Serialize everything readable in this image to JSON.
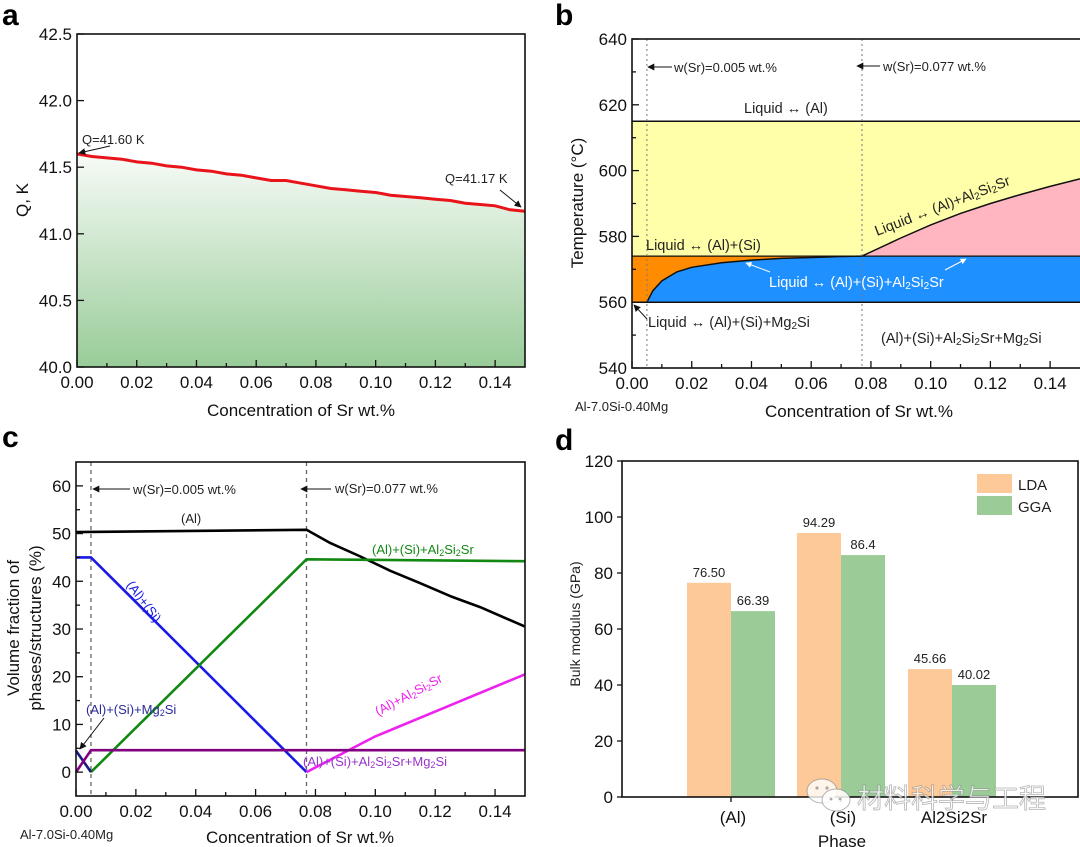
{
  "chart_data": [
    {
      "panel": "a",
      "type": "area",
      "title": "",
      "xlabel": "Concentration of Sr wt.%",
      "ylabel": "Q, K",
      "xlim": [
        0,
        0.15
      ],
      "ylim": [
        40.0,
        42.5
      ],
      "xticks": [
        "0.00",
        "0.02",
        "0.04",
        "0.06",
        "0.08",
        "0.10",
        "0.12",
        "0.14"
      ],
      "yticks": [
        "40.0",
        "40.5",
        "41.0",
        "41.5",
        "42.0",
        "42.5"
      ],
      "series": [
        {
          "name": "Q",
          "color": "#e8141a",
          "x": [
            0.0,
            0.005,
            0.01,
            0.015,
            0.02,
            0.025,
            0.03,
            0.035,
            0.04,
            0.045,
            0.05,
            0.055,
            0.06,
            0.065,
            0.07,
            0.075,
            0.08,
            0.085,
            0.09,
            0.095,
            0.1,
            0.105,
            0.11,
            0.115,
            0.12,
            0.125,
            0.13,
            0.135,
            0.14,
            0.145,
            0.15
          ],
          "y": [
            41.6,
            41.58,
            41.57,
            41.56,
            41.54,
            41.53,
            41.51,
            41.5,
            41.48,
            41.47,
            41.45,
            41.44,
            41.42,
            41.4,
            41.4,
            41.38,
            41.36,
            41.34,
            41.33,
            41.32,
            41.31,
            41.29,
            41.28,
            41.27,
            41.26,
            41.25,
            41.23,
            41.22,
            41.21,
            41.18,
            41.17
          ]
        }
      ],
      "fill": {
        "top_color": "#f7fbf7",
        "bottom_color": "#98cc98"
      },
      "annotations": [
        {
          "text": "Q=41.60 K",
          "x": 0.0,
          "y": 41.6
        },
        {
          "text": "Q=41.17 K",
          "x": 0.15,
          "y": 41.17
        }
      ]
    },
    {
      "panel": "b",
      "type": "area",
      "title": "",
      "xlabel": "Concentration of Sr wt.%",
      "ylabel": "Temperature (°C)",
      "xlim": [
        0,
        0.15
      ],
      "ylim": [
        540,
        640
      ],
      "xticks": [
        "0.00",
        "0.02",
        "0.04",
        "0.06",
        "0.08",
        "0.10",
        "0.12",
        "0.14"
      ],
      "yticks": [
        "540",
        "560",
        "580",
        "600",
        "620",
        "640"
      ],
      "composition_label": "Al-7.0Si-0.40Mg",
      "reference_lines": [
        {
          "x": 0.005,
          "label": "w(Sr)=0.005 wt.%"
        },
        {
          "x": 0.077,
          "label": "w(Sr)=0.077 wt.%"
        }
      ],
      "boundaries": {
        "liquidus_T": 615,
        "eutectic_top_T": 574,
        "solidus_T": 560,
        "al2si2sr_curve": {
          "x": [
            0.077,
            0.09,
            0.1,
            0.11,
            0.12,
            0.13,
            0.14,
            0.15
          ],
          "y": [
            574,
            579.5,
            583.5,
            587,
            590,
            592.7,
            595.2,
            597.5
          ]
        },
        "blue_curve": {
          "x": [
            0.005,
            0.007,
            0.01,
            0.015,
            0.02,
            0.03,
            0.04,
            0.05,
            0.06,
            0.07,
            0.077
          ],
          "y": [
            560,
            563.5,
            566.5,
            569.2,
            570.6,
            572,
            572.8,
            573.3,
            573.6,
            573.9,
            574
          ]
        }
      },
      "regions": [
        {
          "name": "Liquid ↔ (Al)",
          "color": "#ffffaa"
        },
        {
          "name": "Liquid ↔ (Al)+(Si)",
          "color": "#ff8c00"
        },
        {
          "name": "Liquid ↔ (Al)+Al2Si2Sr",
          "color": "#ffb6c1"
        },
        {
          "name": "Liquid ↔ (Al)+(Si)+Al2Si2Sr",
          "color": "#1e90ff"
        },
        {
          "name": "Liquid ↔ (Al)+(Si)+Mg2Si",
          "color": "#ffffff"
        },
        {
          "name": "(Al)+(Si)+Al2Si2Sr+Mg2Si",
          "color": "#ffffff"
        }
      ],
      "labels": {
        "liquid_al": "Liquid ↔ (Al)",
        "liquid_al_si": "Liquid ↔ (Al)+(Si)",
        "liquid_al_al2si2sr_prefix": "Liquid ↔ (Al)+Al",
        "liquid_al_si_al2si2sr_prefix": "Liquid ↔ (Al)+(Si)+Al",
        "liquid_al_si_mg2si_prefix": "Liquid ↔ (Al)+(Si)+Mg",
        "solid_prefix": "(Al)+(Si)+Al",
        "sub2": "2",
        "si": "Si",
        "sr": "Sr",
        "mg": "+Mg"
      }
    },
    {
      "panel": "c",
      "type": "line",
      "title": "",
      "xlabel": "Concentration of Sr wt.%",
      "ylabel_line1": "Volume fraction of",
      "ylabel_line2": "phases/structures (%)",
      "xlim": [
        0,
        0.15
      ],
      "ylim": [
        -5,
        65
      ],
      "xticks": [
        "0.00",
        "0.02",
        "0.04",
        "0.06",
        "0.08",
        "0.10",
        "0.12",
        "0.14"
      ],
      "yticks": [
        "0",
        "10",
        "20",
        "30",
        "40",
        "50",
        "60"
      ],
      "composition_label": "Al-7.0Si-0.40Mg",
      "reference_lines": [
        {
          "x": 0.005,
          "label": "w(Sr)=0.005 wt.%"
        },
        {
          "x": 0.077,
          "label": "w(Sr)=0.077 wt.%"
        }
      ],
      "series": [
        {
          "name": "(Al)",
          "color": "#000000",
          "x": [
            0,
            0.077,
            0.085,
            0.095,
            0.105,
            0.115,
            0.125,
            0.135,
            0.15
          ],
          "y": [
            50.3,
            50.8,
            48.0,
            45.2,
            42.2,
            39.6,
            36.9,
            34.6,
            30.5
          ]
        },
        {
          "name": "(Al)+(Si)",
          "color": "#1a1ae6",
          "x": [
            0,
            0.005,
            0.077
          ],
          "y": [
            45.0,
            45.0,
            0.0
          ]
        },
        {
          "name": "(Al)+(Si)+Al2Si2Sr",
          "color": "#118811",
          "x": [
            0.005,
            0.077,
            0.15
          ],
          "y": [
            0.0,
            44.6,
            44.2
          ]
        },
        {
          "name": "(Al)+Al2Si2Sr",
          "color": "#ee22ee",
          "x": [
            0.077,
            0.1,
            0.125,
            0.15
          ],
          "y": [
            0.0,
            7.5,
            14.0,
            20.5
          ]
        },
        {
          "name": "(Al)+(Si)+Mg2Si",
          "color": "#1a1a80",
          "x": [
            0,
            0.005
          ],
          "y": [
            4.5,
            0.0
          ]
        },
        {
          "name": "(Al)+(Si)+Al2Si2Sr+Mg2Si",
          "color": "#800080",
          "x": [
            0,
            0.005,
            0.15
          ],
          "y": [
            0.0,
            4.6,
            4.6
          ]
        }
      ],
      "labels": {
        "al": "(Al)",
        "al_si": "(Al)+(Si)",
        "al_si_al2si2sr_prefix": "(Al)+(Si)+Al",
        "al_al2si2sr_prefix": "(Al)+Al",
        "al_si_mg2si_prefix": "(Al)+(Si)+Mg",
        "al_si_al2si2sr_mg2si_prefix": "(Al)+(Si)+Al",
        "sub2": "2",
        "si": "Si",
        "sr": "Sr",
        "mg_tail": "Sr+Mg"
      }
    },
    {
      "panel": "d",
      "type": "bar",
      "title": "",
      "xlabel": "Phase",
      "ylabel": "Bulk modulus (GPa)",
      "ylim": [
        0,
        120
      ],
      "yticks": [
        "0",
        "20",
        "40",
        "60",
        "80",
        "100",
        "120"
      ],
      "categories": [
        "(Al)",
        "(Si)",
        "Al2Si2Sr"
      ],
      "legend_position": "top-right",
      "series": [
        {
          "name": "LDA",
          "color": "#fdc998",
          "values": [
            76.5,
            94.29,
            45.66
          ],
          "labels": [
            "76.50",
            "94.29",
            "45.66"
          ]
        },
        {
          "name": "GGA",
          "color": "#9bcc98",
          "values": [
            66.39,
            86.4,
            40.02
          ],
          "labels": [
            "66.39",
            "86.4",
            "40.02"
          ]
        }
      ]
    }
  ],
  "panel_letters": [
    "a",
    "b",
    "c",
    "d"
  ],
  "watermark": {
    "icon": "wechat-icon",
    "text": "材料科学与工程"
  }
}
